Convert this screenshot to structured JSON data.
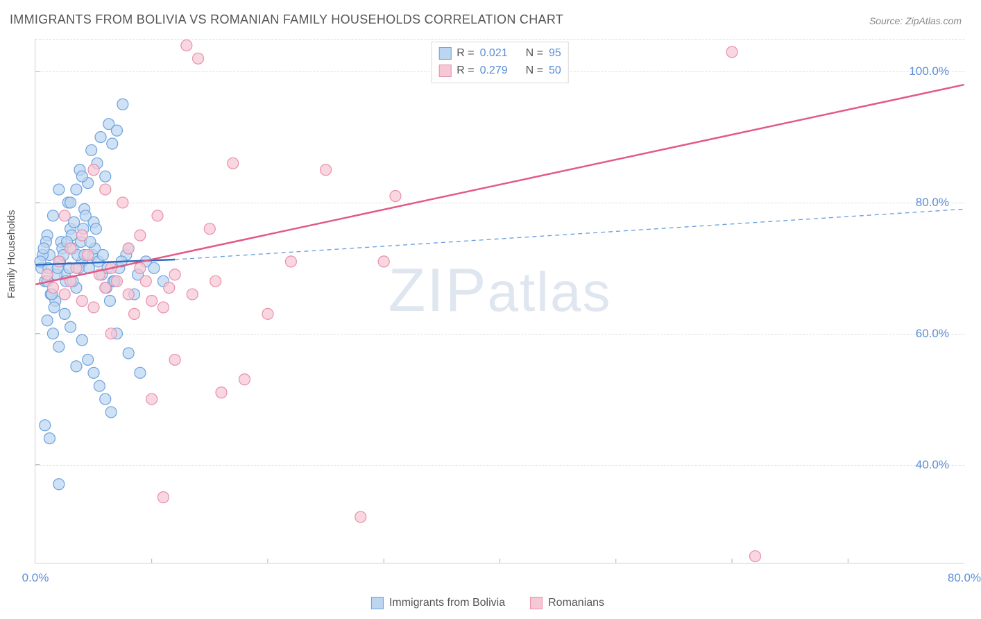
{
  "title": "IMMIGRANTS FROM BOLIVIA VS ROMANIAN FAMILY HOUSEHOLDS CORRELATION CHART",
  "source": "Source: ZipAtlas.com",
  "ylabel": "Family Households",
  "watermark_a": "ZIP",
  "watermark_b": "atlas",
  "chart": {
    "type": "scatter",
    "xlim": [
      0,
      80
    ],
    "ylim": [
      25,
      105
    ],
    "xtick_major": [
      0,
      80
    ],
    "xtick_minor": [
      10,
      20,
      30,
      40,
      50,
      60,
      70
    ],
    "ytick_labels": [
      40,
      60,
      80,
      100
    ],
    "gridlines_y": [
      40,
      60,
      80,
      100,
      105
    ],
    "background_color": "#ffffff",
    "grid_color": "#dddddd",
    "axis_color": "#d0d0d0",
    "tick_label_color": "#5b8dd6",
    "tick_label_fontsize": 17,
    "series": [
      {
        "name": "Immigrants from Bolivia",
        "marker_fill": "#bcd5f0",
        "marker_stroke": "#6ea2de",
        "marker_radius": 8,
        "marker_opacity": 0.72,
        "trend_color": "#2e6bc0",
        "trend_dashed_color": "#6ea2de",
        "trend_solid": {
          "x1": 0,
          "y1": 70.5,
          "x2": 12,
          "y2": 71.3
        },
        "trend_dash": {
          "x1": 12,
          "y1": 71.3,
          "x2": 80,
          "y2": 79.0
        },
        "R": "0.021",
        "N": "95",
        "points": [
          [
            0.5,
            70
          ],
          [
            0.8,
            68
          ],
          [
            1.0,
            75
          ],
          [
            1.2,
            72
          ],
          [
            1.5,
            78
          ],
          [
            1.7,
            65
          ],
          [
            2.0,
            82
          ],
          [
            2.2,
            74
          ],
          [
            2.5,
            69
          ],
          [
            2.8,
            80
          ],
          [
            3.0,
            76
          ],
          [
            3.2,
            73
          ],
          [
            3.5,
            67
          ],
          [
            3.8,
            85
          ],
          [
            4.0,
            71
          ],
          [
            4.2,
            79
          ],
          [
            4.5,
            83
          ],
          [
            4.8,
            88
          ],
          [
            5.0,
            77
          ],
          [
            5.3,
            86
          ],
          [
            5.6,
            90
          ],
          [
            6.0,
            84
          ],
          [
            6.3,
            92
          ],
          [
            6.6,
            89
          ],
          [
            7.0,
            91
          ],
          [
            7.5,
            95
          ],
          [
            1.0,
            62
          ],
          [
            1.5,
            60
          ],
          [
            2.0,
            58
          ],
          [
            2.5,
            63
          ],
          [
            3.0,
            61
          ],
          [
            3.5,
            55
          ],
          [
            4.0,
            59
          ],
          [
            4.5,
            56
          ],
          [
            5.0,
            54
          ],
          [
            5.5,
            52
          ],
          [
            6.0,
            50
          ],
          [
            6.5,
            48
          ],
          [
            0.6,
            72
          ],
          [
            0.9,
            74
          ],
          [
            1.1,
            70
          ],
          [
            1.3,
            66
          ],
          [
            1.6,
            64
          ],
          [
            1.8,
            69
          ],
          [
            2.1,
            71
          ],
          [
            2.3,
            73
          ],
          [
            2.6,
            68
          ],
          [
            2.9,
            70
          ],
          [
            3.1,
            75
          ],
          [
            3.3,
            77
          ],
          [
            3.6,
            72
          ],
          [
            3.9,
            74
          ],
          [
            4.1,
            76
          ],
          [
            4.3,
            78
          ],
          [
            4.6,
            70
          ],
          [
            4.9,
            72
          ],
          [
            5.1,
            73
          ],
          [
            5.4,
            71
          ],
          [
            5.7,
            69
          ],
          [
            6.1,
            67
          ],
          [
            6.4,
            65
          ],
          [
            6.7,
            68
          ],
          [
            7.2,
            70
          ],
          [
            7.8,
            72
          ],
          [
            8.5,
            66
          ],
          [
            9.0,
            54
          ],
          [
            2.0,
            37
          ],
          [
            0.8,
            46
          ],
          [
            1.2,
            44
          ],
          [
            3.0,
            80
          ],
          [
            3.5,
            82
          ],
          [
            4.0,
            84
          ],
          [
            0.4,
            71
          ],
          [
            0.7,
            73
          ],
          [
            1.0,
            68
          ],
          [
            1.4,
            66
          ],
          [
            1.9,
            70
          ],
          [
            2.4,
            72
          ],
          [
            2.7,
            74
          ],
          [
            3.2,
            68
          ],
          [
            3.7,
            70
          ],
          [
            4.2,
            72
          ],
          [
            4.7,
            74
          ],
          [
            5.2,
            76
          ],
          [
            5.8,
            72
          ],
          [
            6.2,
            70
          ],
          [
            6.8,
            68
          ],
          [
            7.4,
            71
          ],
          [
            8.0,
            73
          ],
          [
            8.8,
            69
          ],
          [
            9.5,
            71
          ],
          [
            10.2,
            70
          ],
          [
            11.0,
            68
          ],
          [
            7.0,
            60
          ],
          [
            8.0,
            57
          ]
        ]
      },
      {
        "name": "Romanians",
        "marker_fill": "#f6c8d6",
        "marker_stroke": "#e88fab",
        "marker_radius": 8,
        "marker_opacity": 0.72,
        "trend_color": "#e25a85",
        "trend_width": 2.5,
        "trend_solid": {
          "x1": 0,
          "y1": 67.5,
          "x2": 80,
          "y2": 98.0
        },
        "R": "0.279",
        "N": "50",
        "points": [
          [
            1.0,
            69
          ],
          [
            1.5,
            67
          ],
          [
            2.0,
            71
          ],
          [
            2.5,
            66
          ],
          [
            3.0,
            68
          ],
          [
            3.5,
            70
          ],
          [
            4.0,
            65
          ],
          [
            4.5,
            72
          ],
          [
            5.0,
            64
          ],
          [
            5.5,
            69
          ],
          [
            6.0,
            67
          ],
          [
            6.5,
            70
          ],
          [
            7.0,
            68
          ],
          [
            7.5,
            80
          ],
          [
            8.0,
            66
          ],
          [
            8.5,
            63
          ],
          [
            9.0,
            70
          ],
          [
            9.5,
            68
          ],
          [
            10.0,
            65
          ],
          [
            10.5,
            78
          ],
          [
            11.0,
            64
          ],
          [
            11.5,
            67
          ],
          [
            12.0,
            69
          ],
          [
            13.0,
            104
          ],
          [
            14.0,
            102
          ],
          [
            15.0,
            76
          ],
          [
            16.0,
            51
          ],
          [
            17.0,
            86
          ],
          [
            18.0,
            53
          ],
          [
            20.0,
            63
          ],
          [
            22.0,
            71
          ],
          [
            25.0,
            85
          ],
          [
            28.0,
            32
          ],
          [
            30.0,
            71
          ],
          [
            31.0,
            81
          ],
          [
            10.0,
            50
          ],
          [
            11.0,
            35
          ],
          [
            12.0,
            56
          ],
          [
            5.0,
            85
          ],
          [
            6.0,
            82
          ],
          [
            60.0,
            103
          ],
          [
            62.0,
            26
          ],
          [
            3.0,
            73
          ],
          [
            4.0,
            75
          ],
          [
            8.0,
            73
          ],
          [
            9.0,
            75
          ],
          [
            13.5,
            66
          ],
          [
            15.5,
            68
          ],
          [
            2.5,
            78
          ],
          [
            6.5,
            60
          ]
        ]
      }
    ]
  },
  "legend_bottom": {
    "blue_label": "Immigrants from Bolivia",
    "pink_label": "Romanians"
  },
  "xtick_label_0": "0.0%",
  "xtick_label_80": "80.0%",
  "ytick_label_40": "40.0%",
  "ytick_label_60": "60.0%",
  "ytick_label_80": "80.0%",
  "ytick_label_100": "100.0%",
  "legend_R": "R =",
  "legend_N": "N ="
}
